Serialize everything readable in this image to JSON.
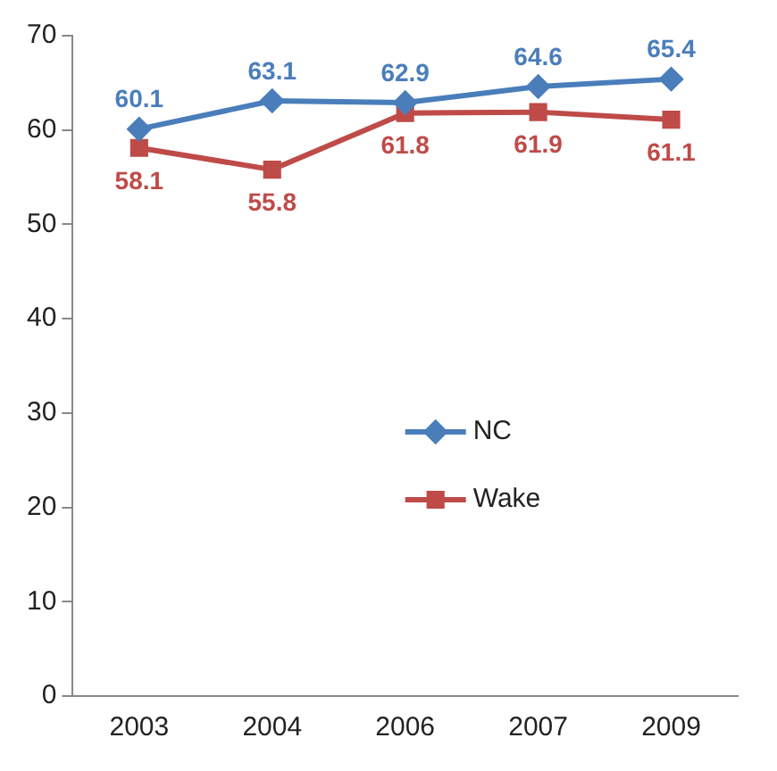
{
  "chart_data": {
    "type": "line",
    "categories": [
      "2003",
      "2004",
      "2006",
      "2007",
      "2009"
    ],
    "series": [
      {
        "name": "NC",
        "color": "#4a7ebb",
        "marker": "diamond",
        "values": [
          60.1,
          63.1,
          62.9,
          64.6,
          65.4
        ]
      },
      {
        "name": "Wake",
        "color": "#be4b48",
        "marker": "square",
        "values": [
          58.1,
          55.8,
          61.8,
          61.9,
          61.1
        ]
      }
    ],
    "ylim": [
      0,
      70
    ],
    "yticks": [
      0,
      10,
      20,
      30,
      40,
      50,
      60,
      70
    ],
    "grid": false,
    "legend": "center",
    "data_labels": true
  }
}
